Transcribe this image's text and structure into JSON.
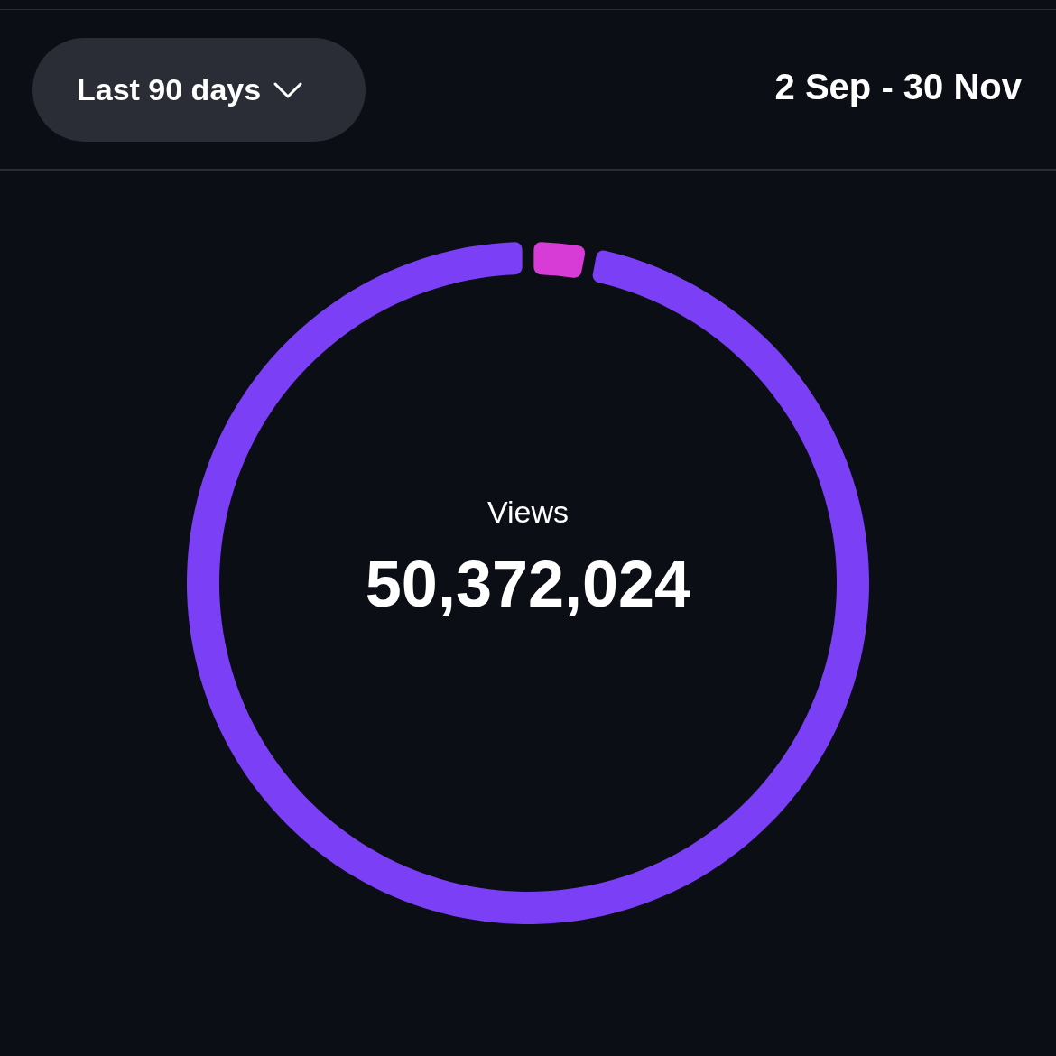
{
  "chart_data": {
    "type": "donut",
    "subtitle": "2 Sep - 30 Nov",
    "annotations": [
      "Last 90 days",
      "Views",
      "50,372,024"
    ],
    "categories": [
      null,
      null
    ],
    "values": [
      3,
      97
    ],
    "colors": [
      "#d83cd6",
      "#7b3ff5"
    ]
  }
}
